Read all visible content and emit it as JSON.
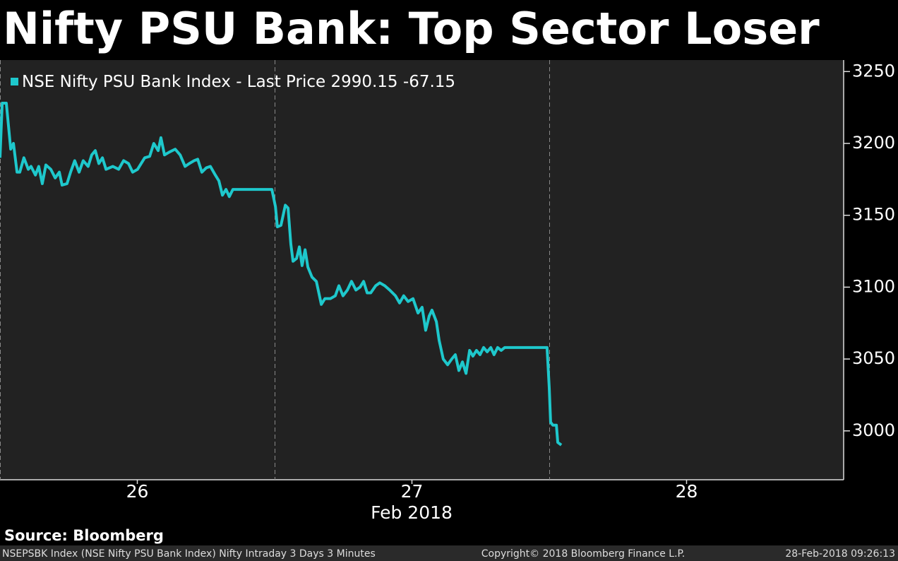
{
  "chart_data": {
    "type": "line",
    "title": "Nifty PSU Bank: Top Sector Loser",
    "x_label": "Feb 2018",
    "source": "Source: Bloomberg",
    "footer_left": "NSEPSBK Index (NSE Nifty PSU Bank Index) Nifty Intraday 3 Days 3 Minutes",
    "footer_center": "Copyright© 2018 Bloomberg Finance L.P.",
    "footer_right": "28-Feb-2018 09:26:13",
    "last_price": 2990.15,
    "change": -67.15,
    "xlim": [
      0,
      3.072
    ],
    "xticks": [
      {
        "value": 0.5,
        "label": "26"
      },
      {
        "value": 1.5,
        "label": "27"
      },
      {
        "value": 2.5,
        "label": "28"
      }
    ],
    "day_separators": [
      0,
      1,
      2
    ],
    "ylim": [
      2966,
      3258
    ],
    "yticks": [
      3000,
      3050,
      3100,
      3150,
      3200,
      3250
    ],
    "legend": "top-left",
    "x": [
      0,
      0.008,
      0.023,
      0.039,
      0.049,
      0.062,
      0.072,
      0.087,
      0.103,
      0.113,
      0.129,
      0.141,
      0.154,
      0.167,
      0.185,
      0.201,
      0.216,
      0.226,
      0.244,
      0.257,
      0.272,
      0.288,
      0.303,
      0.321,
      0.334,
      0.347,
      0.36,
      0.373,
      0.386,
      0.411,
      0.432,
      0.45,
      0.468,
      0.483,
      0.501,
      0.514,
      0.527,
      0.545,
      0.56,
      0.576,
      0.586,
      0.599,
      0.617,
      0.638,
      0.656,
      0.674,
      0.689,
      0.707,
      0.72,
      0.735,
      0.751,
      0.766,
      0.784,
      0.797,
      0.81,
      0.823,
      0.835,
      0.848,
      0.99,
      1.003,
      1.01,
      1.023,
      1.039,
      1.049,
      1.059,
      1.067,
      1.08,
      1.09,
      1.1,
      1.111,
      1.121,
      1.136,
      1.152,
      1.17,
      1.183,
      1.203,
      1.221,
      1.234,
      1.249,
      1.265,
      1.28,
      1.296,
      1.311,
      1.324,
      1.337,
      1.35,
      1.368,
      1.383,
      1.401,
      1.419,
      1.44,
      1.455,
      1.47,
      1.486,
      1.504,
      1.522,
      1.537,
      1.55,
      1.563,
      1.573,
      1.589,
      1.599,
      1.614,
      1.63,
      1.645,
      1.658,
      1.671,
      1.684,
      1.697,
      1.71,
      1.722,
      1.735,
      1.748,
      1.761,
      1.774,
      1.787,
      1.799,
      1.812,
      1.825,
      1.838,
      1.992,
      2.0,
      2.005,
      2.013,
      2.026,
      2.031,
      2.044
    ],
    "series": [
      {
        "name": "NSE Nifty PSU Bank Index - Last Price",
        "color": "#1ec8cc",
        "values": [
          3190,
          3228,
          3228,
          3196,
          3200,
          3180,
          3180,
          3190,
          3182,
          3184,
          3178,
          3184,
          3172,
          3185,
          3182,
          3176,
          3180,
          3171,
          3172,
          3180,
          3188,
          3180,
          3188,
          3184,
          3192,
          3195,
          3186,
          3190,
          3182,
          3184,
          3182,
          3188,
          3186,
          3180,
          3182,
          3186,
          3190,
          3191,
          3200,
          3195,
          3204,
          3192,
          3194,
          3196,
          3192,
          3184,
          3186,
          3188,
          3189,
          3180,
          3183,
          3184,
          3178,
          3174,
          3164,
          3168,
          3163,
          3168,
          3168,
          3156,
          3142,
          3143,
          3157,
          3155,
          3130,
          3118,
          3120,
          3128,
          3115,
          3126,
          3114,
          3107,
          3104,
          3088,
          3092,
          3092,
          3094,
          3101,
          3094,
          3098,
          3104,
          3098,
          3100,
          3104,
          3096,
          3096,
          3101,
          3103,
          3101,
          3098,
          3094,
          3089,
          3094,
          3090,
          3092,
          3082,
          3086,
          3070,
          3080,
          3084,
          3076,
          3063,
          3050,
          3046,
          3050,
          3053,
          3042,
          3048,
          3040,
          3056,
          3052,
          3056,
          3053,
          3058,
          3055,
          3058,
          3053,
          3058,
          3056,
          3058,
          3058,
          3030,
          3006,
          3004,
          3004,
          2992,
          2990.15
        ]
      }
    ]
  }
}
